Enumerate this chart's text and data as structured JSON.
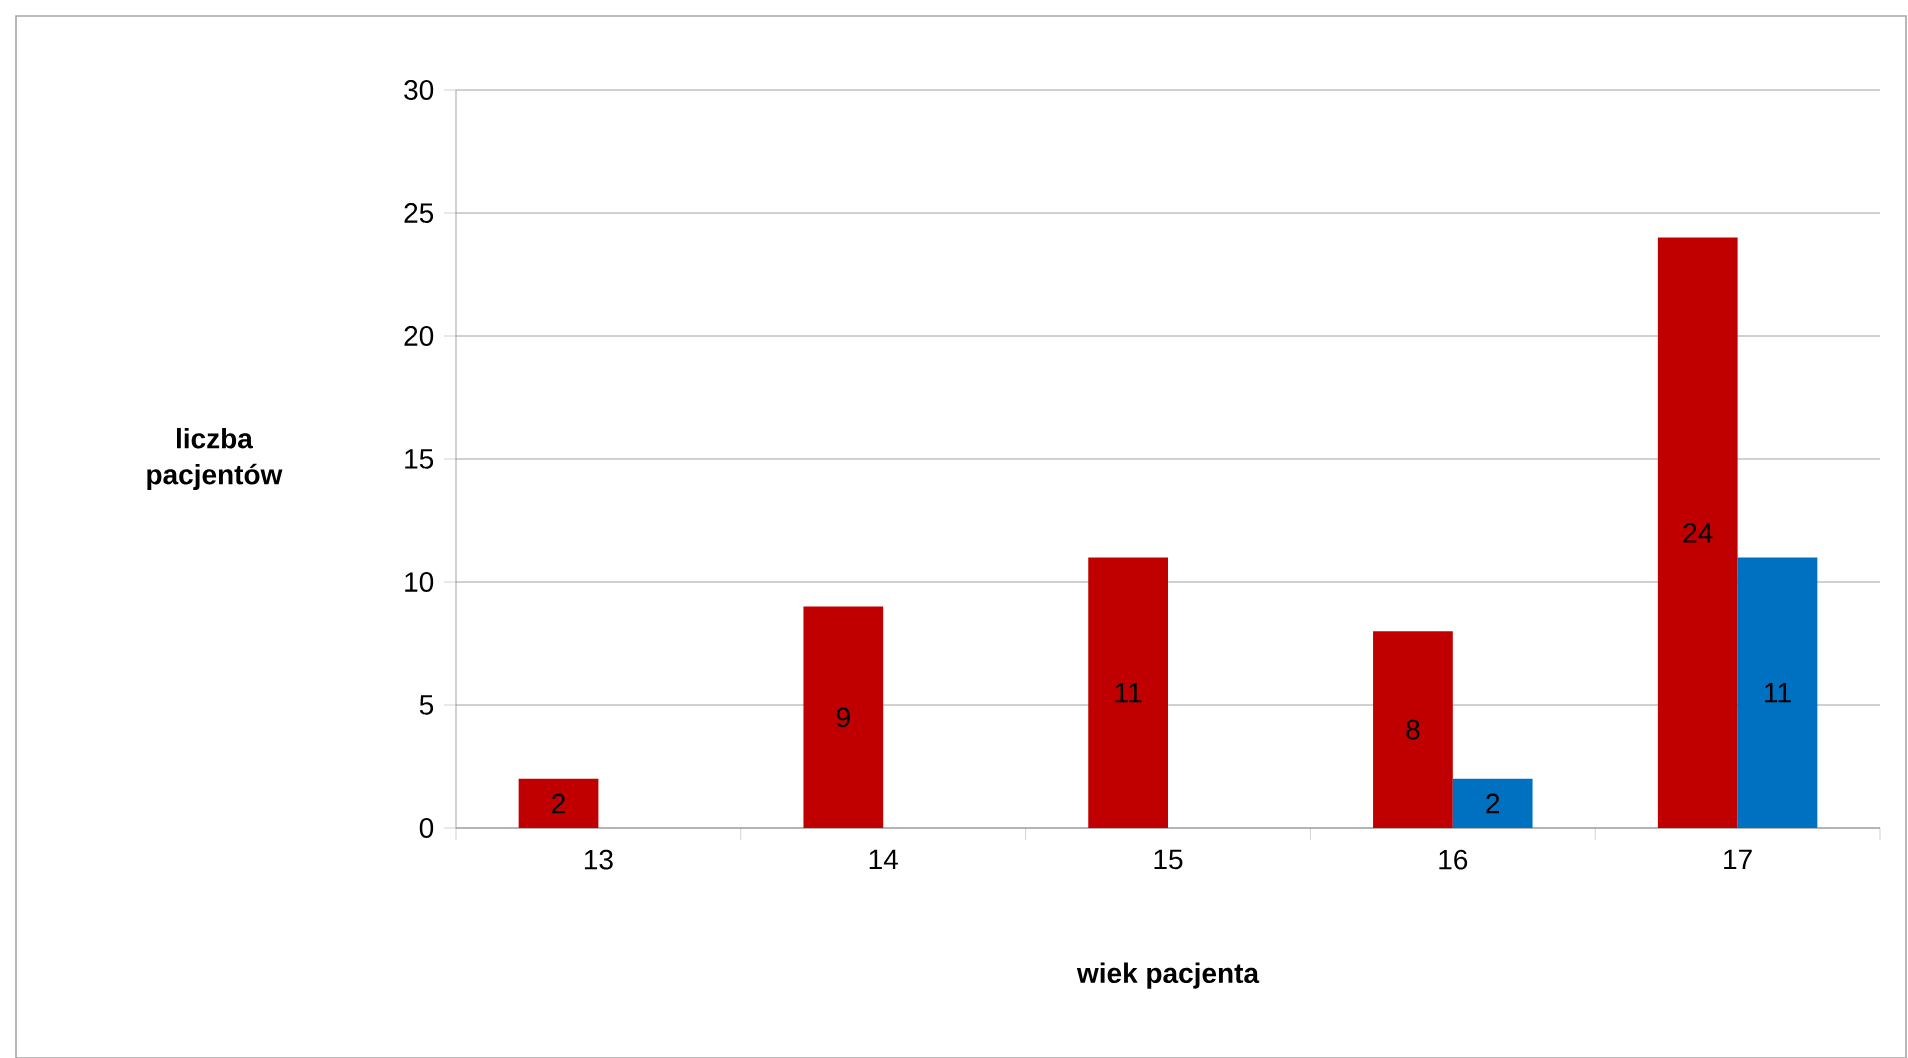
{
  "chart_data": {
    "type": "bar",
    "xlabel": "wiek pacjenta",
    "ylabel": "liczba pacjentów",
    "categories": [
      "13",
      "14",
      "15",
      "16",
      "17"
    ],
    "series": [
      {
        "color": "#c00000",
        "values": [
          2,
          9,
          11,
          8,
          24
        ]
      },
      {
        "color": "#0070c0",
        "values": [
          null,
          null,
          null,
          2,
          11
        ]
      }
    ],
    "ylim": [
      0,
      30
    ],
    "yticks": [
      0,
      5,
      10,
      15,
      20,
      25,
      30
    ],
    "grid": "y",
    "data_labels": true
  }
}
